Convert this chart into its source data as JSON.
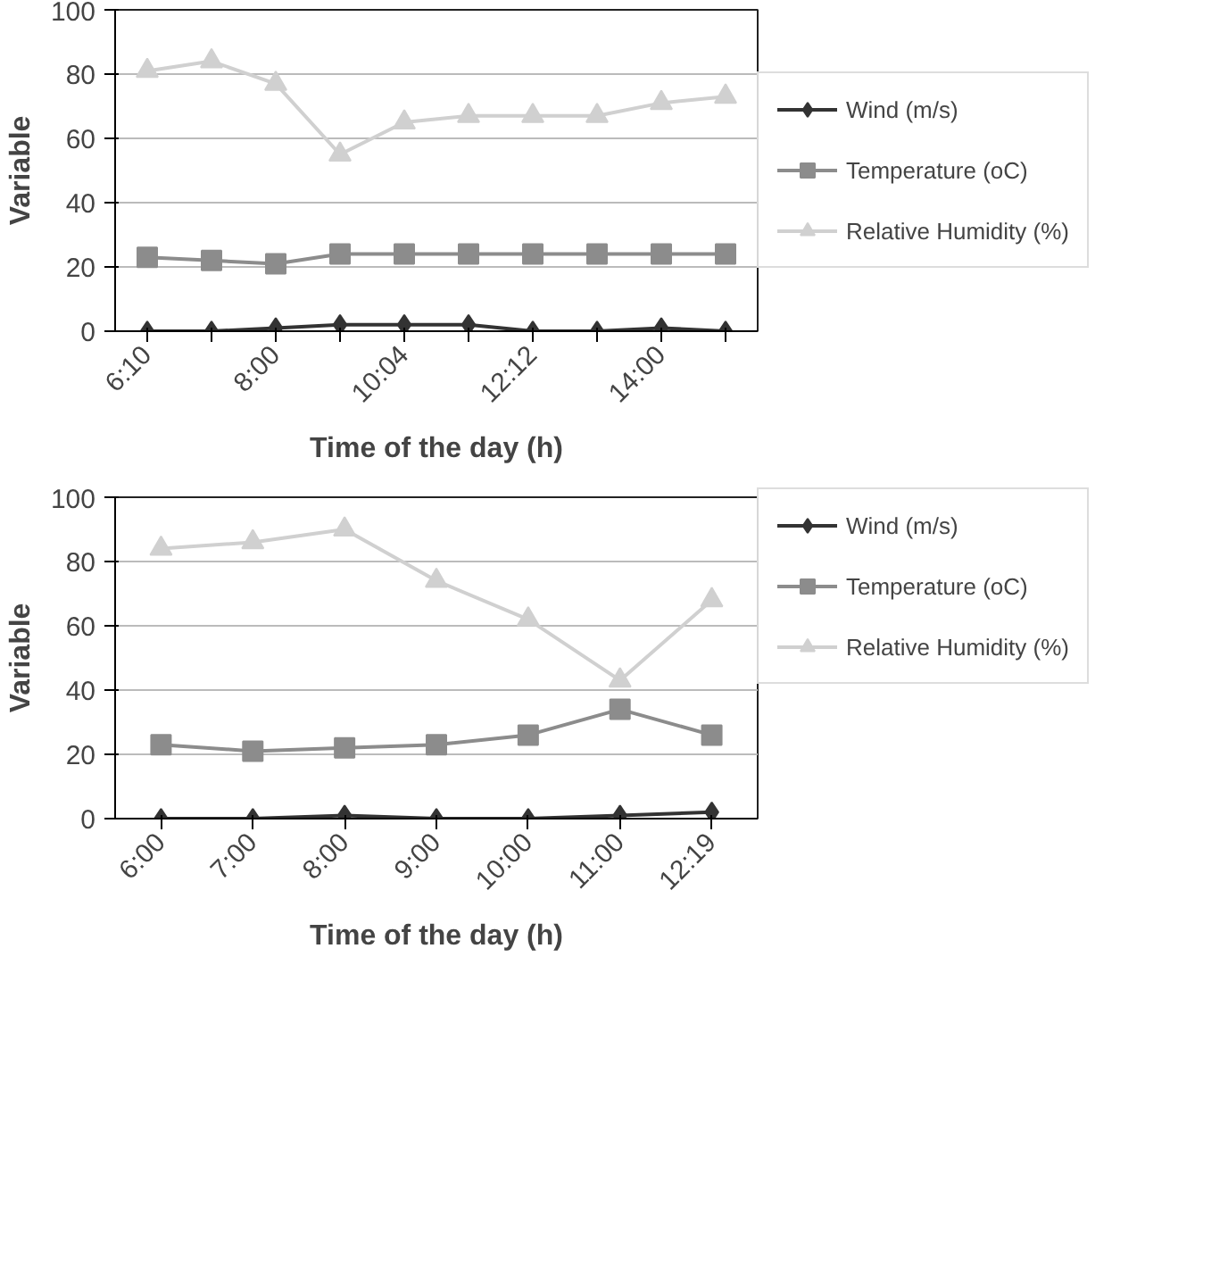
{
  "chart_data": [
    {
      "type": "line",
      "xlabel": "Time of the day (h)",
      "ylabel": "Variable",
      "categories": [
        "6:10",
        null,
        "8:00",
        null,
        "10:04",
        null,
        "12:12",
        null,
        "14:00",
        null
      ],
      "series": [
        {
          "name": "Wind (m/s)",
          "color": "#333333",
          "marker": "diamond",
          "values": [
            0,
            0,
            1,
            2,
            2,
            2,
            0,
            0,
            1,
            0
          ]
        },
        {
          "name": "Temperature (oC)",
          "color": "#8c8c8c",
          "marker": "square",
          "values": [
            23,
            22,
            21,
            24,
            24,
            24,
            24,
            24,
            24,
            24
          ]
        },
        {
          "name": "Relative Humidity (%)",
          "color": "#d0d0d0",
          "marker": "triangle",
          "values": [
            81,
            84,
            77,
            55,
            65,
            67,
            67,
            67,
            71,
            73
          ]
        }
      ],
      "ylim": [
        0,
        100
      ],
      "yticks": [
        0,
        20,
        40,
        60,
        80,
        100
      ],
      "grid": "y",
      "legend": "right",
      "line_style": "solid"
    },
    {
      "type": "line",
      "xlabel": "Time of the day (h)",
      "ylabel": "Variable",
      "categories": [
        "6:00",
        "7:00",
        "8:00",
        "9:00",
        "10:00",
        "11:00",
        "12:19"
      ],
      "series": [
        {
          "name": "Wind (m/s)",
          "color": "#333333",
          "marker": "diamond",
          "values": [
            0,
            0,
            1,
            0,
            0,
            1,
            2
          ]
        },
        {
          "name": "Temperature (oC)",
          "color": "#8c8c8c",
          "marker": "square",
          "values": [
            23,
            21,
            22,
            23,
            26,
            34,
            26
          ]
        },
        {
          "name": "Relative Humidity (%)",
          "color": "#d0d0d0",
          "marker": "triangle",
          "values": [
            84,
            86,
            90,
            74,
            62,
            43,
            68
          ]
        }
      ],
      "ylim": [
        0,
        100
      ],
      "yticks": [
        0,
        20,
        40,
        60,
        80,
        100
      ],
      "grid": "y",
      "legend": "top right",
      "line_style": "solid"
    }
  ]
}
